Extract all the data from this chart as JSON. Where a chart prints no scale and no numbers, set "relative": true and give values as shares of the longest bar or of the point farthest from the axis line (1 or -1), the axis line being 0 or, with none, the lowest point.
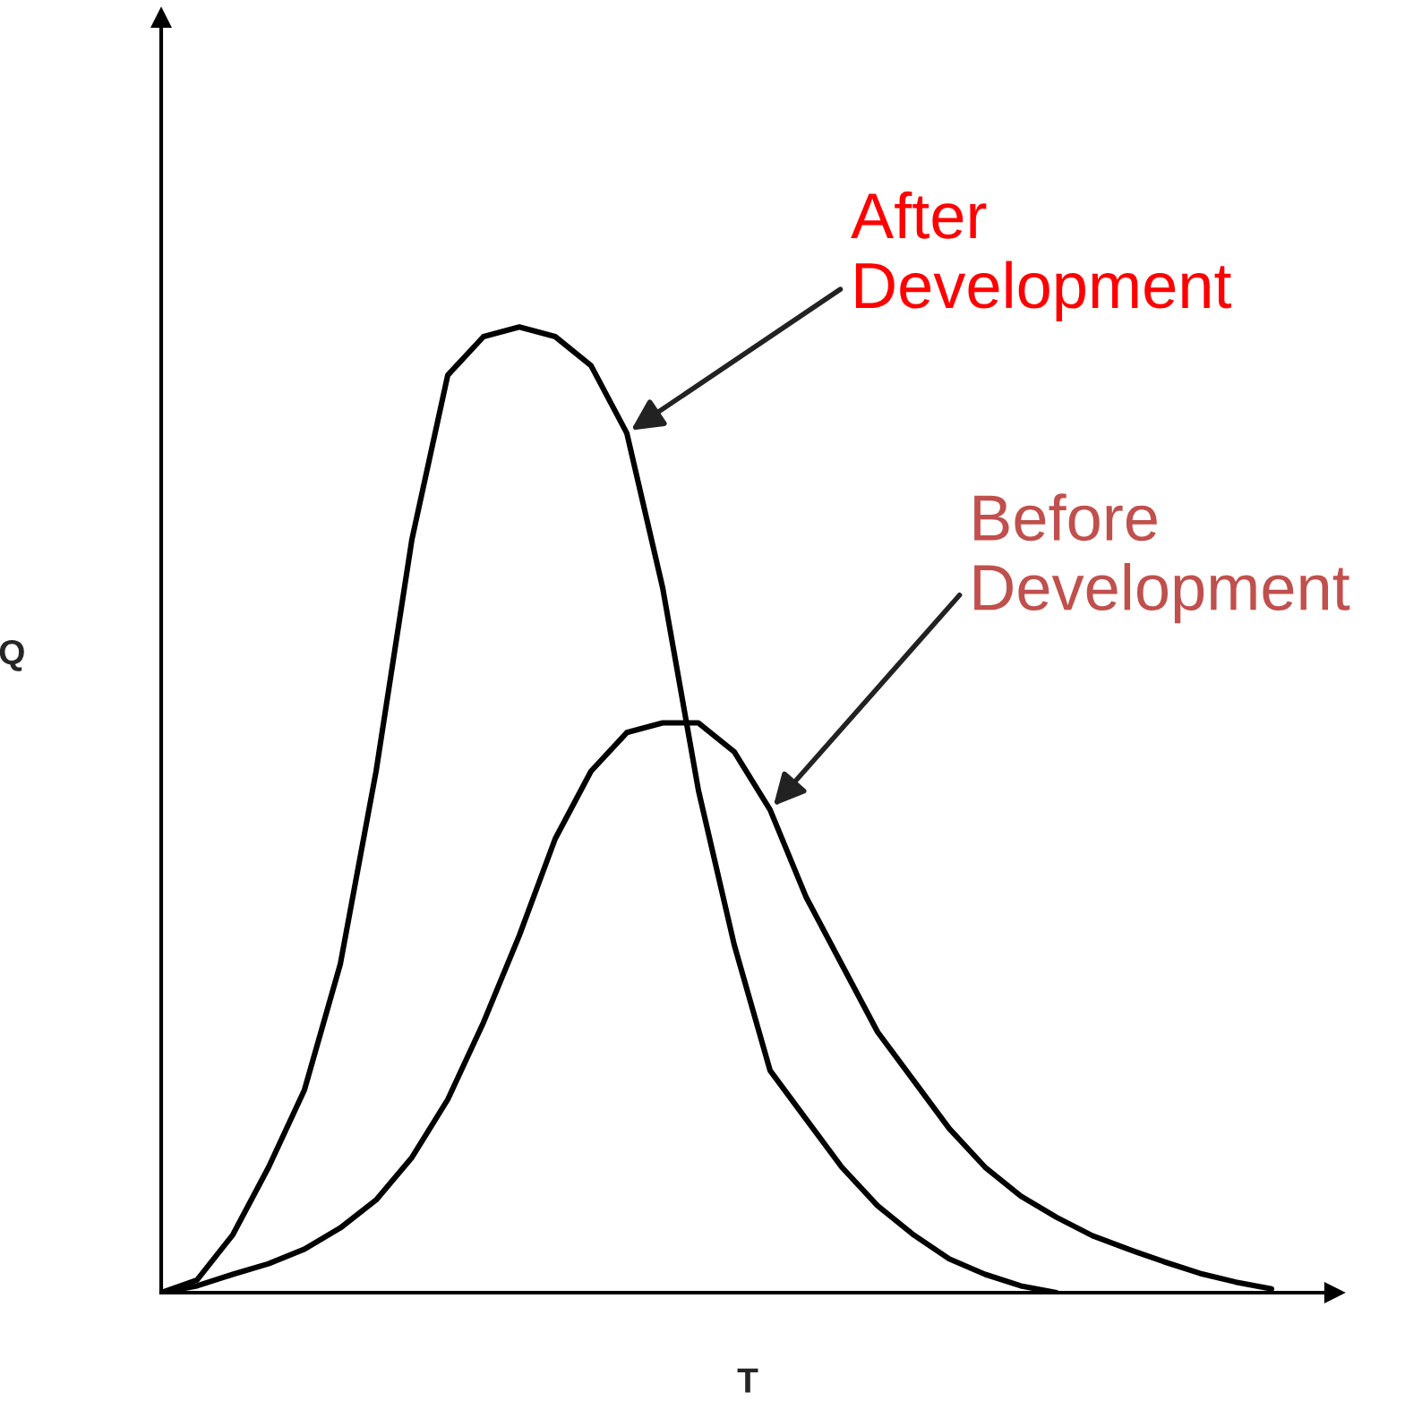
{
  "chart_data": {
    "type": "line",
    "relative": true,
    "xlabel": "T",
    "ylabel": "Q",
    "tick_labels": false,
    "legend": false,
    "marker": "none",
    "line_style": "solid",
    "categories": [
      null,
      null,
      null,
      null,
      null,
      null,
      null,
      null,
      null,
      null,
      null,
      null,
      null,
      null,
      null,
      null,
      null,
      null,
      null,
      null,
      null,
      null,
      null,
      null,
      null,
      null,
      null,
      null,
      null,
      null,
      null,
      null,
      null
    ],
    "series": [
      {
        "name": "After Development",
        "color": "#000000",
        "values": [
          0,
          0.013,
          0.06,
          0.13,
          0.21,
          0.34,
          0.54,
          0.78,
          0.95,
          0.99,
          1.0,
          0.99,
          0.96,
          0.89,
          0.73,
          0.52,
          0.36,
          0.23,
          0.18,
          0.13,
          0.09,
          0.06,
          0.035,
          0.019,
          0.007,
          0,
          null,
          null,
          null,
          null,
          null,
          null,
          null
        ]
      },
      {
        "name": "Before Development",
        "color": "#000000",
        "values": [
          0,
          0.007,
          0.019,
          0.03,
          0.045,
          0.067,
          0.096,
          0.14,
          0.2,
          0.28,
          0.37,
          0.47,
          0.54,
          0.58,
          0.59,
          0.59,
          0.56,
          0.5,
          0.41,
          0.34,
          0.27,
          0.22,
          0.17,
          0.13,
          0.1,
          0.078,
          0.059,
          0.045,
          0.032,
          0.02,
          0.011,
          0.004,
          null
        ]
      }
    ]
  }
}
